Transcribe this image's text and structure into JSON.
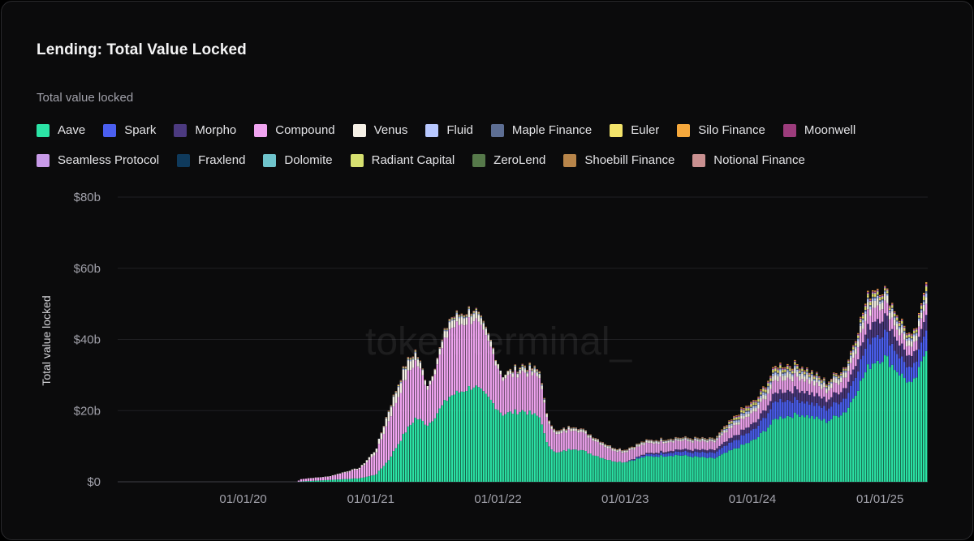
{
  "header": {
    "title": "Lending: Total Value Locked",
    "legend_title": "Total value locked"
  },
  "watermark": "token terminal_",
  "chart_data": {
    "type": "bar",
    "stacked": true,
    "title": "Lending: Total Value Locked",
    "ylabel": "Total value locked",
    "ylim": [
      0,
      80
    ],
    "y_unit": "billions USD",
    "y_ticks": [
      "$0",
      "$20b",
      "$40b",
      "$60b",
      "$80b"
    ],
    "x_ticks": [
      "01/01/20",
      "01/01/21",
      "01/01/22",
      "01/01/23",
      "01/01/24",
      "01/01/25"
    ],
    "x_range": [
      "2019-01-06",
      "2025-05-18"
    ],
    "grid": true,
    "legend_position": "top",
    "series": [
      {
        "name": "Aave",
        "color": "#2be3a5"
      },
      {
        "name": "Spark",
        "color": "#4b5ff0"
      },
      {
        "name": "Morpho",
        "color": "#4c3a80"
      },
      {
        "name": "Compound",
        "color": "#f0a4f0"
      },
      {
        "name": "Venus",
        "color": "#f5f0e6"
      },
      {
        "name": "Fluid",
        "color": "#b8c8ff"
      },
      {
        "name": "Maple Finance",
        "color": "#5d6e93"
      },
      {
        "name": "Euler",
        "color": "#f3e36a"
      },
      {
        "name": "Silo Finance",
        "color": "#f5a83c"
      },
      {
        "name": "Moonwell",
        "color": "#9c3c7c"
      },
      {
        "name": "Seamless Protocol",
        "color": "#c89ae8"
      },
      {
        "name": "Fraxlend",
        "color": "#0f3a5c"
      },
      {
        "name": "Dolomite",
        "color": "#6fc4cc"
      },
      {
        "name": "Radiant Capital",
        "color": "#d6e070"
      },
      {
        "name": "ZeroLend",
        "color": "#56794a"
      },
      {
        "name": "Shoebill Finance",
        "color": "#b8854a"
      },
      {
        "name": "Notional Finance",
        "color": "#c99090"
      }
    ],
    "keyframes": [
      {
        "date": "2019-01-06",
        "total": 0,
        "aave": 0,
        "spark": 0,
        "morpho": 0,
        "compound": 0,
        "venus": 0
      },
      {
        "date": "2020-06-01",
        "total": 0,
        "aave": 0,
        "spark": 0,
        "morpho": 0,
        "compound": 0,
        "venus": 0
      },
      {
        "date": "2020-06-15",
        "total": 0.8,
        "aave": 0.1,
        "spark": 0,
        "morpho": 0,
        "compound": 0.7,
        "venus": 0
      },
      {
        "date": "2020-09-01",
        "total": 1.5,
        "aave": 0.5,
        "spark": 0,
        "morpho": 0,
        "compound": 0.9,
        "venus": 0.1
      },
      {
        "date": "2020-12-01",
        "total": 4,
        "aave": 1,
        "spark": 0,
        "morpho": 0,
        "compound": 2.7,
        "venus": 0.3
      },
      {
        "date": "2021-01-15",
        "total": 9,
        "aave": 2,
        "spark": 0,
        "morpho": 0,
        "compound": 6,
        "venus": 1
      },
      {
        "date": "2021-02-20",
        "total": 20,
        "aave": 6,
        "spark": 0,
        "morpho": 0,
        "compound": 11,
        "venus": 2.5
      },
      {
        "date": "2021-04-10",
        "total": 33,
        "aave": 14,
        "spark": 0,
        "morpho": 0,
        "compound": 15,
        "venus": 3
      },
      {
        "date": "2021-05-10",
        "total": 37,
        "aave": 18,
        "spark": 0,
        "morpho": 0,
        "compound": 16,
        "venus": 2
      },
      {
        "date": "2021-06-15",
        "total": 27,
        "aave": 16,
        "spark": 0,
        "morpho": 0,
        "compound": 10,
        "venus": 1
      },
      {
        "date": "2021-08-15",
        "total": 46,
        "aave": 24,
        "spark": 0,
        "morpho": 0,
        "compound": 19,
        "venus": 2
      },
      {
        "date": "2021-10-25",
        "total": 49,
        "aave": 27,
        "spark": 0,
        "morpho": 0,
        "compound": 19,
        "venus": 2
      },
      {
        "date": "2021-12-10",
        "total": 40,
        "aave": 23,
        "spark": 0,
        "morpho": 0,
        "compound": 15,
        "venus": 1.5
      },
      {
        "date": "2022-01-15",
        "total": 30,
        "aave": 19,
        "spark": 0,
        "morpho": 0,
        "compound": 10,
        "venus": 1
      },
      {
        "date": "2022-03-15",
        "total": 33,
        "aave": 20,
        "spark": 0,
        "morpho": 0,
        "compound": 11,
        "venus": 1
      },
      {
        "date": "2022-05-05",
        "total": 31,
        "aave": 18,
        "spark": 0,
        "morpho": 0,
        "compound": 11,
        "venus": 1
      },
      {
        "date": "2022-05-20",
        "total": 19,
        "aave": 11,
        "spark": 0,
        "morpho": 0,
        "compound": 7,
        "venus": 0.8
      },
      {
        "date": "2022-06-20",
        "total": 14,
        "aave": 8,
        "spark": 0,
        "morpho": 0,
        "compound": 5,
        "venus": 0.6
      },
      {
        "date": "2022-08-10",
        "total": 16,
        "aave": 9.5,
        "spark": 0,
        "morpho": 0,
        "compound": 5.5,
        "venus": 0.6
      },
      {
        "date": "2022-11-20",
        "total": 10,
        "aave": 6,
        "spark": 0,
        "morpho": 0,
        "compound": 3.2,
        "venus": 0.5
      },
      {
        "date": "2022-12-31",
        "total": 9,
        "aave": 5.5,
        "spark": 0,
        "morpho": 0,
        "compound": 2.8,
        "venus": 0.4
      },
      {
        "date": "2023-03-01",
        "total": 11.5,
        "aave": 7,
        "spark": 0.5,
        "morpho": 0.3,
        "compound": 2.8,
        "venus": 0.5
      },
      {
        "date": "2023-06-01",
        "total": 12.5,
        "aave": 7.5,
        "spark": 1,
        "morpho": 0.6,
        "compound": 2.5,
        "venus": 0.4
      },
      {
        "date": "2023-09-15",
        "total": 12,
        "aave": 6.5,
        "spark": 1.5,
        "morpho": 0.8,
        "compound": 2.2,
        "venus": 0.4
      },
      {
        "date": "2023-12-01",
        "total": 20,
        "aave": 10,
        "spark": 2.5,
        "morpho": 1.5,
        "compound": 3,
        "venus": 0.8
      },
      {
        "date": "2024-01-15",
        "total": 23,
        "aave": 12,
        "spark": 3,
        "morpho": 1.8,
        "compound": 3,
        "venus": 1
      },
      {
        "date": "2024-03-15",
        "total": 33,
        "aave": 18,
        "spark": 5,
        "morpho": 2.5,
        "compound": 3.5,
        "venus": 1.5
      },
      {
        "date": "2024-05-20",
        "total": 33,
        "aave": 19,
        "spark": 4,
        "morpho": 3,
        "compound": 3.5,
        "venus": 1.5
      },
      {
        "date": "2024-08-05",
        "total": 28,
        "aave": 17,
        "spark": 3.5,
        "morpho": 2.5,
        "compound": 2.5,
        "venus": 1.2
      },
      {
        "date": "2024-10-01",
        "total": 33,
        "aave": 20,
        "spark": 4,
        "morpho": 3,
        "compound": 3,
        "venus": 1.5
      },
      {
        "date": "2024-12-01",
        "total": 52,
        "aave": 32,
        "spark": 7,
        "morpho": 4,
        "compound": 4,
        "venus": 2
      },
      {
        "date": "2024-12-20",
        "total": 55,
        "aave": 34,
        "spark": 7.5,
        "morpho": 4.5,
        "compound": 4,
        "venus": 2
      },
      {
        "date": "2025-01-20",
        "total": 54,
        "aave": 35,
        "spark": 7,
        "morpho": 4.5,
        "compound": 3.5,
        "venus": 2
      },
      {
        "date": "2025-02-25",
        "total": 47,
        "aave": 31,
        "spark": 5,
        "morpho": 3.8,
        "compound": 3,
        "venus": 1.8
      },
      {
        "date": "2025-04-08",
        "total": 40,
        "aave": 27,
        "spark": 4,
        "morpho": 3,
        "compound": 2.5,
        "venus": 1.5
      },
      {
        "date": "2025-05-01",
        "total": 47,
        "aave": 32,
        "spark": 5,
        "morpho": 3.5,
        "compound": 2.8,
        "venus": 1.6
      },
      {
        "date": "2025-05-18",
        "total": 58,
        "aave": 38,
        "spark": 6,
        "morpho": 4.5,
        "compound": 3.2,
        "venus": 2
      }
    ]
  }
}
